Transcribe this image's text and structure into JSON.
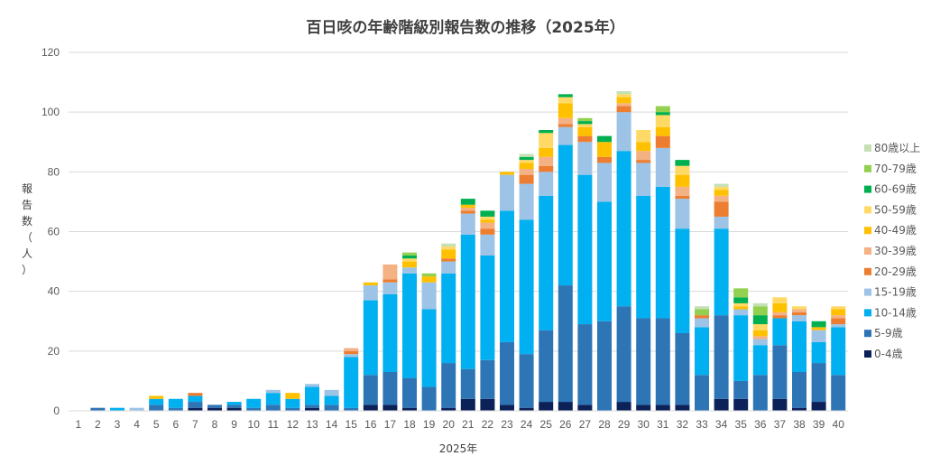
{
  "chart_data": {
    "type": "bar",
    "stacked": true,
    "title": "百日咳の年齢階級別報告数の推移（2025年）",
    "xlabel": "2025年",
    "ylabel": "報告数（人）",
    "ylim": [
      0,
      120
    ],
    "yticks": [
      0,
      20,
      40,
      60,
      80,
      100,
      120
    ],
    "grid": true,
    "legend_position": "right",
    "categories": [
      "1",
      "2",
      "3",
      "4",
      "5",
      "6",
      "7",
      "8",
      "9",
      "10",
      "11",
      "12",
      "13",
      "14",
      "15",
      "16",
      "17",
      "18",
      "19",
      "20",
      "21",
      "22",
      "23",
      "24",
      "25",
      "26",
      "27",
      "28",
      "29",
      "30",
      "31",
      "32",
      "33",
      "34",
      "35",
      "36",
      "37",
      "38",
      "39",
      "40"
    ],
    "series": [
      {
        "name": "0-4歳",
        "color": "#0b2158",
        "values": [
          0,
          0,
          0,
          0,
          0,
          0,
          1,
          1,
          1,
          0,
          0,
          0,
          1,
          0,
          0,
          2,
          2,
          1,
          0,
          1,
          4,
          4,
          2,
          1,
          3,
          3,
          2,
          0,
          3,
          2,
          2,
          2,
          0,
          4,
          4,
          0,
          4,
          1,
          3,
          0
        ]
      },
      {
        "name": "5-9歳",
        "color": "#2e75b6",
        "values": [
          0,
          1,
          0,
          0,
          2,
          1,
          2,
          1,
          1,
          1,
          2,
          1,
          1,
          2,
          1,
          10,
          11,
          10,
          8,
          15,
          10,
          13,
          21,
          18,
          24,
          39,
          27,
          30,
          32,
          29,
          29,
          24,
          12,
          28,
          6,
          12,
          18,
          12,
          13,
          12
        ]
      },
      {
        "name": "10-14歳",
        "color": "#00b0f0",
        "values": [
          0,
          0,
          1,
          0,
          2,
          3,
          2,
          0,
          1,
          3,
          4,
          3,
          6,
          3,
          17,
          25,
          26,
          35,
          26,
          30,
          45,
          35,
          44,
          45,
          45,
          47,
          50,
          40,
          52,
          41,
          44,
          35,
          16,
          29,
          22,
          10,
          9,
          17,
          7,
          16
        ]
      },
      {
        "name": "15-19歳",
        "color": "#9dc3e6",
        "values": [
          0,
          0,
          0,
          1,
          0,
          0,
          0,
          0,
          0,
          0,
          1,
          0,
          1,
          2,
          1,
          5,
          4,
          2,
          9,
          4,
          7,
          7,
          12,
          12,
          8,
          6,
          11,
          13,
          13,
          11,
          13,
          10,
          3,
          4,
          2,
          2,
          0,
          2,
          4,
          1
        ]
      },
      {
        "name": "20-29歳",
        "color": "#ed7d31",
        "values": [
          0,
          0,
          0,
          0,
          0,
          0,
          1,
          0,
          0,
          0,
          0,
          0,
          0,
          0,
          1,
          0,
          1,
          0,
          0,
          1,
          1,
          2,
          0,
          3,
          2,
          1,
          2,
          2,
          2,
          1,
          4,
          1,
          1,
          5,
          0,
          0,
          1,
          1,
          0,
          2
        ]
      },
      {
        "name": "30-39歳",
        "color": "#f4b183",
        "values": [
          0,
          0,
          0,
          0,
          0,
          0,
          0,
          0,
          0,
          0,
          0,
          0,
          0,
          0,
          1,
          0,
          5,
          0,
          0,
          0,
          1,
          2,
          0,
          2,
          3,
          2,
          0,
          0,
          1,
          3,
          0,
          3,
          0,
          2,
          0,
          1,
          1,
          1,
          0,
          1
        ]
      },
      {
        "name": "40-49歳",
        "color": "#ffc000",
        "values": [
          0,
          0,
          0,
          0,
          1,
          0,
          0,
          0,
          0,
          0,
          0,
          2,
          0,
          0,
          0,
          1,
          0,
          2,
          2,
          3,
          1,
          1,
          1,
          2,
          3,
          5,
          3,
          5,
          2,
          3,
          3,
          4,
          0,
          2,
          1,
          2,
          3,
          0,
          1,
          2
        ]
      },
      {
        "name": "50-59歳",
        "color": "#ffd966",
        "values": [
          0,
          0,
          0,
          0,
          0,
          0,
          0,
          0,
          0,
          0,
          0,
          0,
          0,
          0,
          0,
          0,
          0,
          1,
          0,
          1,
          0,
          1,
          0,
          1,
          5,
          2,
          1,
          0,
          1,
          4,
          4,
          3,
          0,
          1,
          1,
          2,
          2,
          1,
          0,
          1
        ]
      },
      {
        "name": "60-69歳",
        "color": "#00b050",
        "values": [
          0,
          0,
          0,
          0,
          0,
          0,
          0,
          0,
          0,
          0,
          0,
          0,
          0,
          0,
          0,
          0,
          0,
          1,
          0,
          0,
          2,
          2,
          0,
          1,
          1,
          1,
          1,
          2,
          0,
          0,
          1,
          2,
          0,
          0,
          2,
          3,
          0,
          0,
          2,
          0
        ]
      },
      {
        "name": "70-79歳",
        "color": "#92d050",
        "values": [
          0,
          0,
          0,
          0,
          0,
          0,
          0,
          0,
          0,
          0,
          0,
          0,
          0,
          0,
          0,
          0,
          0,
          1,
          1,
          0,
          0,
          0,
          0,
          0,
          0,
          0,
          1,
          0,
          0,
          0,
          2,
          0,
          2,
          0,
          3,
          3,
          0,
          0,
          0,
          0
        ]
      },
      {
        "name": "80歳以上",
        "color": "#c5e0b4",
        "values": [
          0,
          0,
          0,
          0,
          0,
          0,
          0,
          0,
          0,
          0,
          0,
          0,
          0,
          0,
          0,
          0,
          0,
          0,
          0,
          1,
          0,
          0,
          0,
          1,
          0,
          0,
          0,
          0,
          1,
          0,
          0,
          0,
          1,
          1,
          0,
          1,
          0,
          0,
          0,
          0
        ]
      }
    ]
  }
}
